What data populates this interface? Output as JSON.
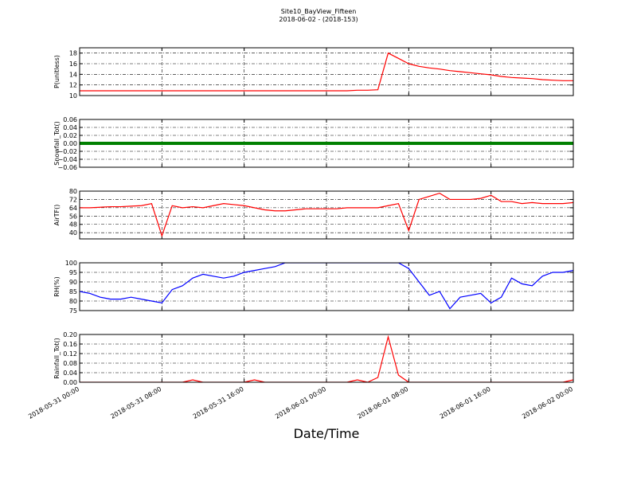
{
  "chart_data": {
    "type": "line",
    "title": "Site10_BayView_Fifteen",
    "subtitle": "2018-06-02 - (2018-153)",
    "xlabel": "Date/Time",
    "x": [
      "2018-05-31 00:00",
      "2018-05-31 01:00",
      "2018-05-31 02:00",
      "2018-05-31 03:00",
      "2018-05-31 04:00",
      "2018-05-31 05:00",
      "2018-05-31 06:00",
      "2018-05-31 07:00",
      "2018-05-31 08:00",
      "2018-05-31 09:00",
      "2018-05-31 10:00",
      "2018-05-31 11:00",
      "2018-05-31 12:00",
      "2018-05-31 13:00",
      "2018-05-31 14:00",
      "2018-05-31 15:00",
      "2018-05-31 16:00",
      "2018-05-31 17:00",
      "2018-05-31 18:00",
      "2018-05-31 19:00",
      "2018-05-31 20:00",
      "2018-05-31 21:00",
      "2018-05-31 22:00",
      "2018-05-31 23:00",
      "2018-06-01 00:00",
      "2018-06-01 01:00",
      "2018-06-01 02:00",
      "2018-06-01 03:00",
      "2018-06-01 04:00",
      "2018-06-01 05:00",
      "2018-06-01 06:00",
      "2018-06-01 07:00",
      "2018-06-01 08:00",
      "2018-06-01 09:00",
      "2018-06-01 10:00",
      "2018-06-01 11:00",
      "2018-06-01 12:00",
      "2018-06-01 13:00",
      "2018-06-01 14:00",
      "2018-06-01 15:00",
      "2018-06-01 16:00",
      "2018-06-01 17:00",
      "2018-06-01 18:00",
      "2018-06-01 19:00",
      "2018-06-01 20:00",
      "2018-06-01 21:00",
      "2018-06-01 22:00",
      "2018-06-01 23:00",
      "2018-06-02 00:00"
    ],
    "xlim": [
      "2018-05-31 00:00",
      "2018-06-02 00:00"
    ],
    "xticks": [
      "2018-05-31 00:00",
      "2018-05-31 08:00",
      "2018-05-31 16:00",
      "2018-06-01 00:00",
      "2018-06-01 08:00",
      "2018-06-01 16:00",
      "2018-06-02 00:00"
    ],
    "grid": true,
    "panels": [
      {
        "ylabel": "P(unitless)",
        "ylim": [
          10,
          19
        ],
        "yticks": [
          10,
          12,
          14,
          16,
          18
        ],
        "series": [
          {
            "color": "#ff0000",
            "values": [
              10.9,
              10.9,
              10.9,
              10.9,
              10.9,
              10.9,
              10.9,
              10.9,
              10.9,
              10.9,
              10.9,
              10.9,
              10.9,
              10.9,
              10.9,
              10.9,
              10.9,
              10.9,
              10.9,
              10.9,
              10.9,
              10.9,
              10.9,
              10.9,
              10.9,
              10.9,
              10.9,
              11.0,
              11.0,
              11.1,
              18,
              17,
              16,
              15.5,
              15.2,
              15,
              14.7,
              14.5,
              14.3,
              14.1,
              13.9,
              13.6,
              13.4,
              13.3,
              13.2,
              13.0,
              12.9,
              12.8,
              12.8
            ]
          }
        ]
      },
      {
        "ylabel": "Snowfall_Tot()",
        "ylim": [
          -0.06,
          0.06
        ],
        "yticks": [
          -0.06,
          -0.04,
          -0.02,
          0,
          0.02,
          0.04,
          0.06
        ],
        "yticklabels": [
          "−0.06",
          "−0.04",
          "−0.02",
          "0.00",
          "0.02",
          "0.04",
          "0.06"
        ],
        "series": [
          {
            "color": "#008000",
            "values": [
              0,
              0,
              0,
              0,
              0,
              0,
              0,
              0,
              0,
              0,
              0,
              0,
              0,
              0,
              0,
              0,
              0,
              0,
              0,
              0,
              0,
              0,
              0,
              0,
              0,
              0,
              0,
              0,
              0,
              0,
              0,
              0,
              0,
              0,
              0,
              0,
              0,
              0,
              0,
              0,
              0,
              0,
              0,
              0,
              0,
              0,
              0,
              0,
              0
            ]
          }
        ]
      },
      {
        "ylabel": "AirTF()",
        "ylim": [
          34,
          80
        ],
        "yticks": [
          40,
          48,
          56,
          64,
          72,
          80
        ],
        "series": [
          {
            "color": "#ff0000",
            "values": [
              64,
              64,
              64.5,
              65,
              65,
              65.5,
              66,
              68,
              37,
              66,
              64,
              65,
              64,
              66,
              68,
              67,
              66,
              64,
              62,
              61,
              61,
              62,
              63,
              63,
              63,
              63,
              64,
              64,
              64,
              64,
              66,
              68,
              42,
              72,
              75,
              78,
              72,
              72,
              72,
              73,
              76,
              70,
              70,
              68,
              69,
              68,
              68,
              68,
              69
            ]
          }
        ]
      },
      {
        "ylabel": "RH(%)",
        "ylim": [
          75,
          100
        ],
        "yticks": [
          75,
          80,
          85,
          90,
          95,
          100
        ],
        "series": [
          {
            "color": "#0000ff",
            "values": [
              85,
              84,
              82,
              81,
              81,
              82,
              81,
              80,
              79,
              86,
              88,
              92,
              94,
              93,
              92,
              93,
              95,
              96,
              97,
              98,
              100,
              100,
              100,
              100,
              100,
              100,
              100,
              100,
              100,
              100,
              100,
              100,
              97,
              90,
              83,
              85,
              76,
              82,
              83,
              84,
              79,
              82,
              92,
              89,
              88,
              93,
              95,
              95,
              96
            ]
          }
        ]
      },
      {
        "ylabel": "Rainfall_Tot()",
        "ylim": [
          0,
          0.2
        ],
        "yticks": [
          0,
          0.04,
          0.08,
          0.12,
          0.16,
          0.2
        ],
        "yticklabels": [
          "0.00",
          "0.04",
          "0.08",
          "0.12",
          "0.16",
          "0.20"
        ],
        "series": [
          {
            "color": "#ff0000",
            "values": [
              0,
              0,
              0,
              0,
              0,
              0,
              0,
              0,
              0,
              0,
              0,
              0.01,
              0,
              0,
              0,
              0,
              0,
              0.01,
              0,
              0,
              0,
              0,
              0,
              0,
              0,
              0,
              0,
              0.01,
              0,
              0.02,
              0.19,
              0.03,
              0,
              0,
              0,
              0,
              0,
              0,
              0,
              0,
              0,
              0,
              0,
              0,
              0,
              0,
              0,
              0,
              0.01
            ]
          }
        ]
      }
    ]
  }
}
